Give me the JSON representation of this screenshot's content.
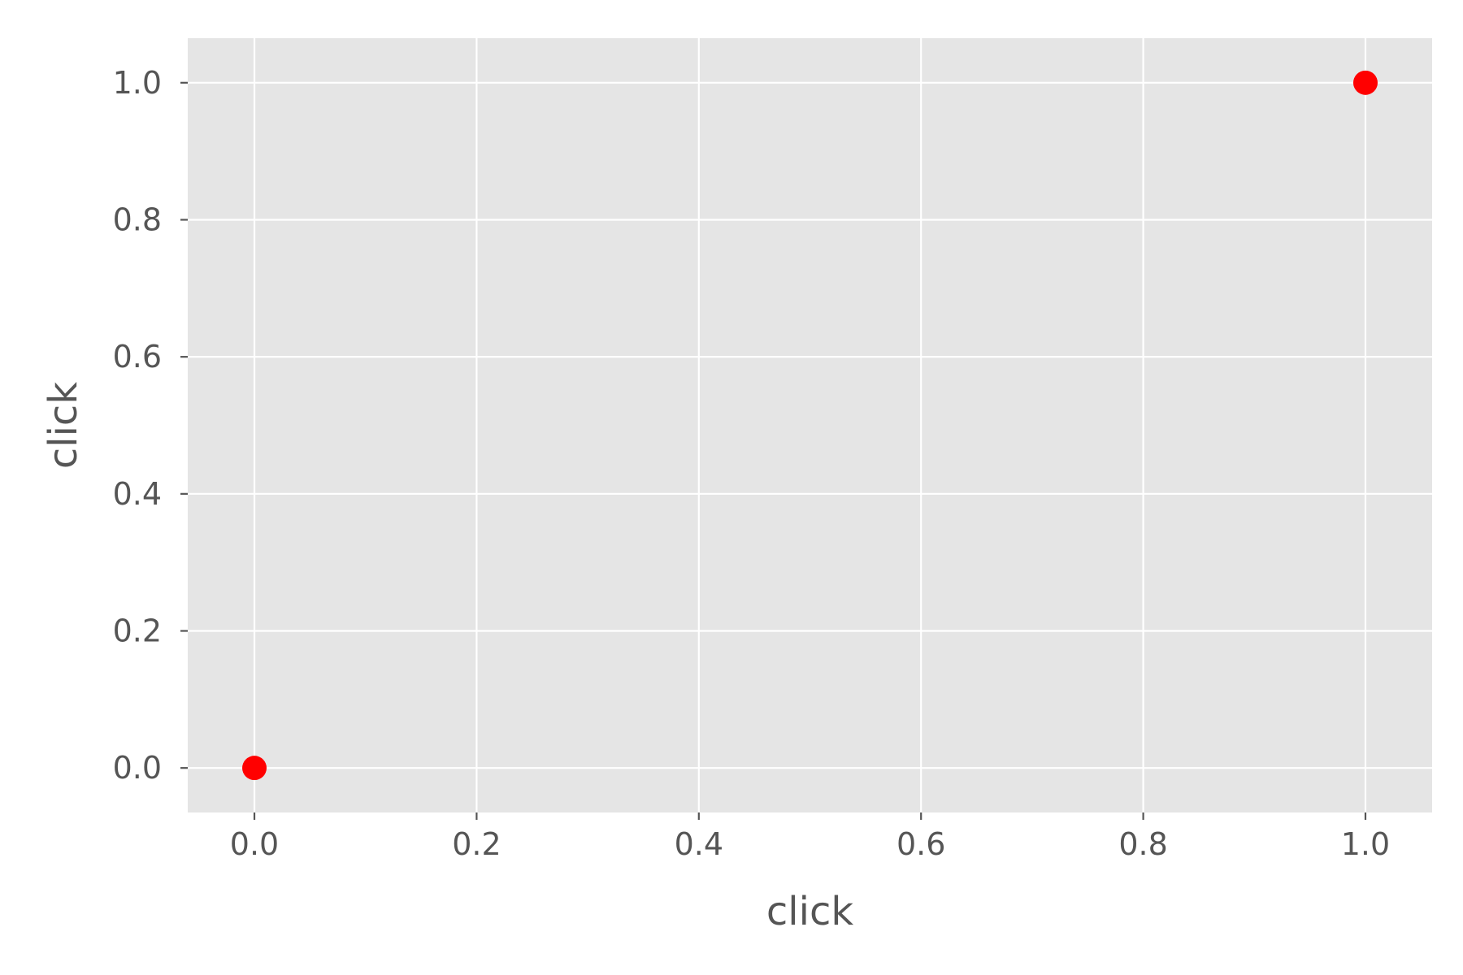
{
  "chart_data": {
    "type": "scatter",
    "title": "",
    "xlabel": "click",
    "ylabel": "click",
    "xlim": [
      -0.06,
      1.06
    ],
    "ylim": [
      -0.065,
      1.065
    ],
    "xticks": [
      0.0,
      0.2,
      0.4,
      0.6,
      0.8,
      1.0
    ],
    "yticks": [
      0.0,
      0.2,
      0.4,
      0.6,
      0.8,
      1.0
    ],
    "xtick_labels": [
      "0.0",
      "0.2",
      "0.4",
      "0.6",
      "0.8",
      "1.0"
    ],
    "ytick_labels": [
      "0.0",
      "0.2",
      "0.4",
      "0.6",
      "0.8",
      "1.0"
    ],
    "grid": true,
    "series": [
      {
        "color": "#ff0000",
        "points": [
          {
            "x": 0.0,
            "y": 0.0
          },
          {
            "x": 1.0,
            "y": 1.0
          }
        ]
      }
    ],
    "background": "#e5e5e5"
  }
}
